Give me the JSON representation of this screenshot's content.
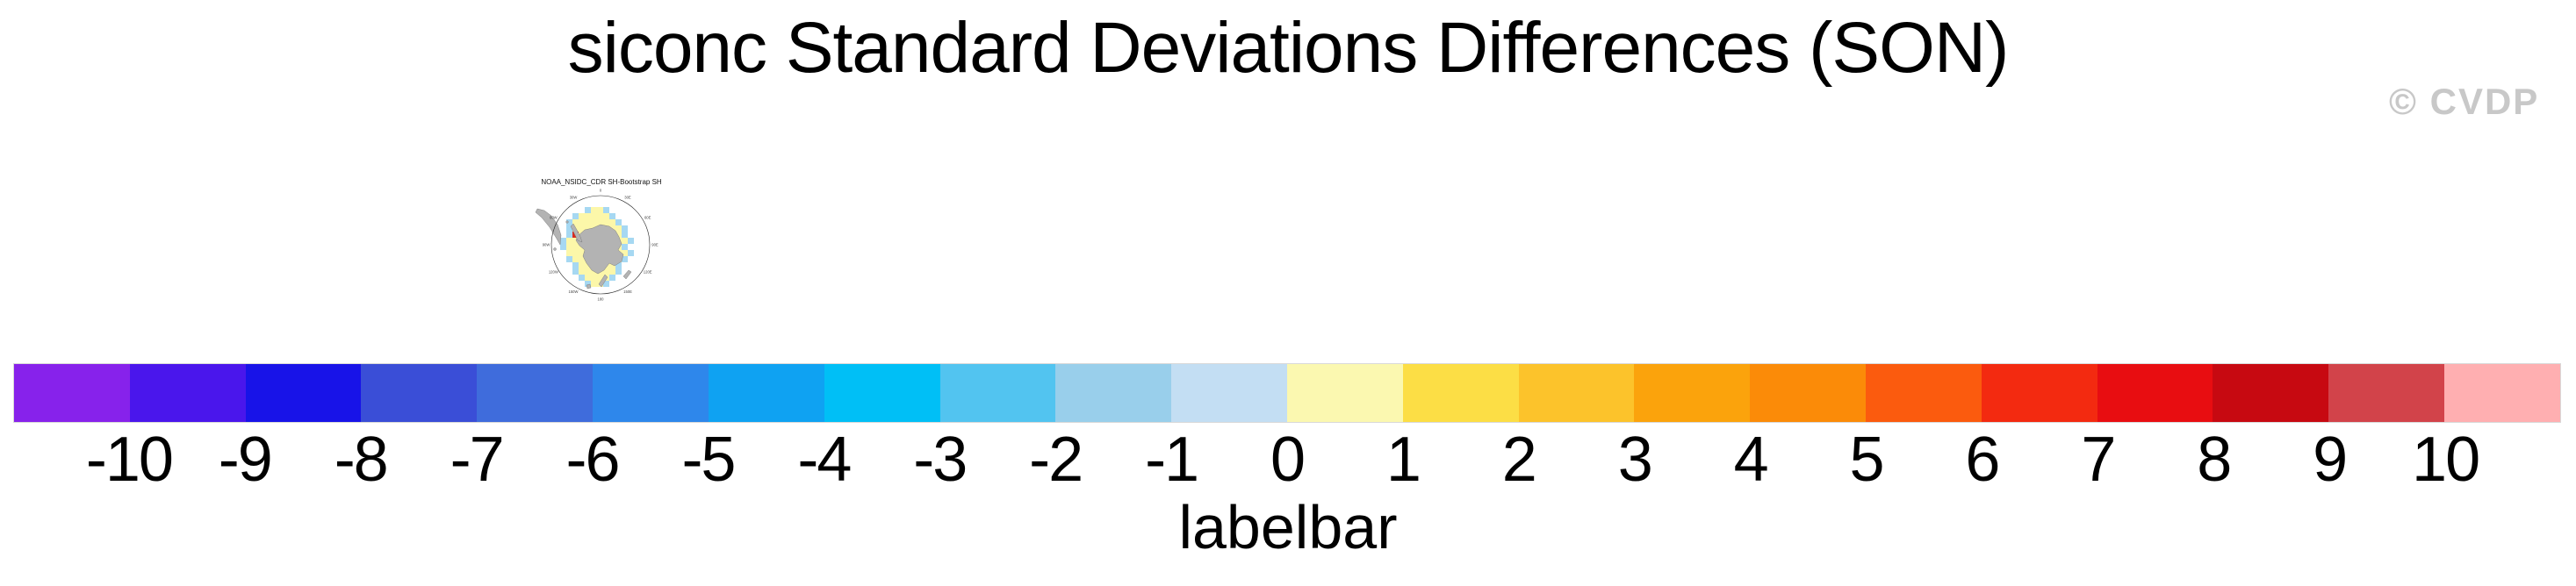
{
  "title": "siconc Standard Deviations Differences (SON)",
  "watermark": "© CVDP",
  "map": {
    "title": "NOAA_NSIDC_CDR SH-Bootstrap SH",
    "lon_labels": [
      "0",
      "30E",
      "60E",
      "90E",
      "120E",
      "150E",
      "180",
      "150W",
      "120W",
      "90W",
      "60W",
      "30W"
    ],
    "colors": {
      "positive_cell": "#FCF7A9",
      "negative_cell": "#A6D8F2",
      "extreme_cell": "#DB2B1E",
      "land": "#B3B3B3",
      "coast": "#777777",
      "circle": "#222222"
    },
    "grid": [
      "....BYYB.....",
      "..BYYYYYB....",
      ".BYYYYYYYB...",
      ".BYYYYYYYYB..",
      ".BRYYYYYYYB..",
      "BYYYYYYYYYYB.",
      "BYYYYYYYYYB..",
      ".YYYYYYYYYYB.",
      ".BYYYYYYYYB..",
      "..BYYYYYYB...",
      "..BYYYYYYB...",
      "...BYYYYB....",
      "....BYYB....."
    ]
  },
  "chart_data": {
    "type": "heatmap",
    "title": "siconc Standard Deviations Differences (SON)",
    "variable": "siconc",
    "season": "SON",
    "panel_titles": [
      "NOAA_NSIDC_CDR SH-Bootstrap SH"
    ],
    "projection": "south polar stereographic",
    "legend_position": "bottom",
    "labelbar": {
      "label": "labelbar",
      "ticks": [
        "-10",
        "-9",
        "-8",
        "-7",
        "-6",
        "-5",
        "-4",
        "-3",
        "-2",
        "-1",
        "0",
        "1",
        "2",
        "3",
        "4",
        "5",
        "6",
        "7",
        "8",
        "9",
        "10"
      ],
      "colors": [
        "#8722EB",
        "#4A16EC",
        "#1813E8",
        "#3A4ED7",
        "#3F6CDC",
        "#2E87EB",
        "#0FA2F2",
        "#00BFF6",
        "#52C4F0",
        "#99CFEB",
        "#C3DEF3",
        "#FBF8B0",
        "#FCDE45",
        "#FCC32B",
        "#FBA30C",
        "#FB8B08",
        "#FB5B0E",
        "#F32A10",
        "#E80D11",
        "#C70911",
        "#D2434A",
        "#FFAFB1"
      ]
    }
  }
}
